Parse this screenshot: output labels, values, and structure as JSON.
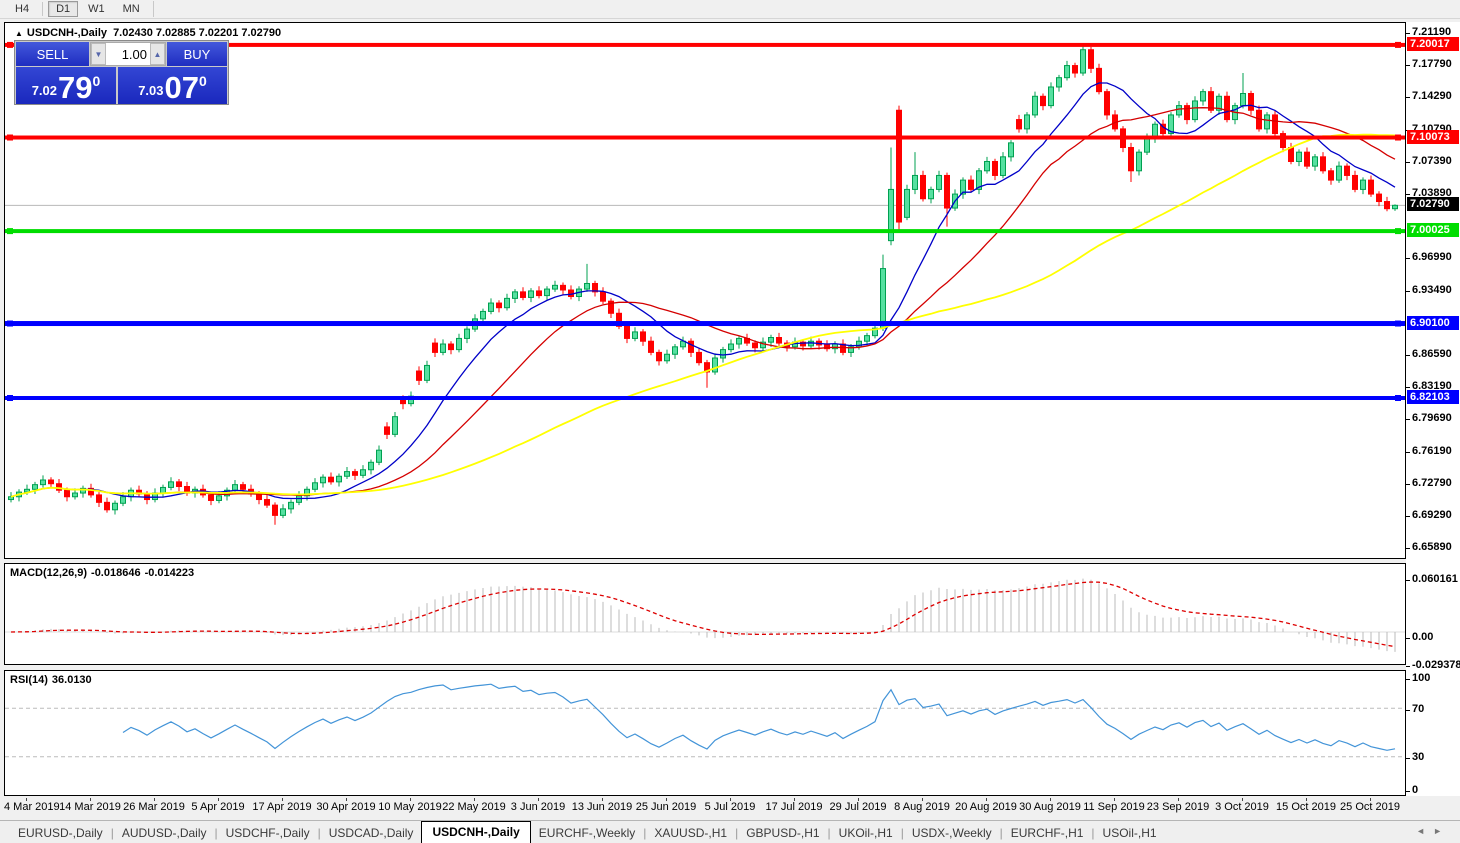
{
  "toolbar": {
    "timeframes": [
      {
        "label": "H4",
        "active": false
      },
      {
        "label": "D1",
        "active": true
      },
      {
        "label": "W1",
        "active": false
      },
      {
        "label": "MN",
        "active": false
      }
    ]
  },
  "chart": {
    "title": {
      "indicator": "▲",
      "symbol": "USDCNH-,Daily",
      "open": "7.02430",
      "high": "7.02885",
      "low": "7.02201",
      "close": "7.02790"
    },
    "trade_panel": {
      "sell_label": "SELL",
      "buy_label": "BUY",
      "volume": "1.00",
      "spinner_down": "▼",
      "spinner_up": "▲",
      "sell_price": {
        "small": "7.02",
        "big": "79",
        "sup": "0"
      },
      "buy_price": {
        "small": "7.03",
        "big": "07",
        "sup": "0"
      }
    },
    "price_axis_ticks": [
      "7.21190",
      "7.17790",
      "7.14290",
      "7.10790",
      "7.07390",
      "7.03890",
      "6.96990",
      "6.93490",
      "6.86590",
      "6.83190",
      "6.79690",
      "6.76190",
      "6.72790",
      "6.69290",
      "6.65890"
    ],
    "current_price": {
      "label": "7.02790",
      "price": 7.0279,
      "badge_bg": "#000000",
      "line_color": "#b8b8b8"
    },
    "hlines": [
      {
        "price": 7.20017,
        "label": "7.20017",
        "color": "#ff0000",
        "thickness": 4
      },
      {
        "price": 7.10073,
        "label": "7.10073",
        "color": "#ff0000",
        "thickness": 4
      },
      {
        "price": 7.00025,
        "label": "7.00025",
        "color": "#00dd00",
        "thickness": 4
      },
      {
        "price": 6.901,
        "label": "6.90100",
        "color": "#0000ff",
        "thickness": 5
      },
      {
        "price": 6.82103,
        "label": "6.82103",
        "color": "#0000ff",
        "thickness": 4
      }
    ]
  },
  "chart_data": {
    "type": "candlestick",
    "symbol": "USDCNH",
    "timeframe": "Daily",
    "y_range": [
      6.6471,
      7.2237
    ],
    "x_labels": [
      "4 Mar 2019",
      "14 Mar 2019",
      "26 Mar 2019",
      "5 Apr 2019",
      "17 Apr 2019",
      "30 Apr 2019",
      "10 May 2019",
      "22 May 2019",
      "3 Jun 2019",
      "13 Jun 2019",
      "25 Jun 2019",
      "5 Jul 2019",
      "17 Jul 2019",
      "29 Jul 2019",
      "8 Aug 2019",
      "20 Aug 2019",
      "30 Aug 2019",
      "11 Sep 2019",
      "23 Sep 2019",
      "3 Oct 2019",
      "15 Oct 2019",
      "25 Oct 2019"
    ],
    "x_label_start_index": 2,
    "x_label_step": 8,
    "colors": {
      "up_fill": "#55e0a0",
      "up_stroke": "#00a050",
      "down_fill": "#ff0000",
      "down_stroke": "#ff0000"
    },
    "overlays": [
      {
        "name": "ma-fast",
        "type": "sma",
        "period": 10,
        "color": "#0000c8",
        "width": 1.3
      },
      {
        "name": "ma-mid",
        "type": "sma",
        "period": 21,
        "color": "#d40000",
        "width": 1.3
      },
      {
        "name": "ma-slow",
        "type": "sma",
        "period": 55,
        "color": "#ffff00",
        "width": 1.8
      }
    ],
    "candles": [
      [
        6.712,
        6.72,
        6.709,
        6.715
      ],
      [
        6.715,
        6.723,
        6.71,
        6.72
      ],
      [
        6.72,
        6.728,
        6.717,
        6.723
      ],
      [
        6.723,
        6.731,
        6.718,
        6.728
      ],
      [
        6.728,
        6.738,
        6.725,
        6.733
      ],
      [
        6.733,
        6.736,
        6.724,
        6.729
      ],
      [
        6.729,
        6.734,
        6.719,
        6.722
      ],
      [
        6.722,
        6.725,
        6.71,
        6.715
      ],
      [
        6.715,
        6.724,
        6.712,
        6.719
      ],
      [
        6.719,
        6.727,
        6.714,
        6.724
      ],
      [
        6.724,
        6.729,
        6.714,
        6.717
      ],
      [
        6.717,
        6.72,
        6.704,
        6.709
      ],
      [
        6.709,
        6.714,
        6.698,
        6.701
      ],
      [
        6.701,
        6.711,
        6.696,
        6.708
      ],
      [
        6.708,
        6.72,
        6.705,
        6.715
      ],
      [
        6.715,
        6.725,
        6.71,
        6.722
      ],
      [
        6.722,
        6.727,
        6.715,
        6.718
      ],
      [
        6.718,
        6.721,
        6.707,
        6.712
      ],
      [
        6.712,
        6.724,
        6.709,
        6.719
      ],
      [
        6.719,
        6.728,
        6.714,
        6.725
      ],
      [
        6.725,
        6.736,
        6.722,
        6.731
      ],
      [
        6.731,
        6.734,
        6.721,
        6.726
      ],
      [
        6.726,
        6.731,
        6.716,
        6.719
      ],
      [
        6.719,
        6.726,
        6.714,
        6.723
      ],
      [
        6.723,
        6.728,
        6.714,
        6.717
      ],
      [
        6.717,
        6.72,
        6.706,
        6.711
      ],
      [
        6.711,
        6.721,
        6.708,
        6.716
      ],
      [
        6.716,
        6.725,
        6.711,
        6.722
      ],
      [
        6.722,
        6.733,
        6.719,
        6.728
      ],
      [
        6.728,
        6.731,
        6.718,
        6.723
      ],
      [
        6.723,
        6.728,
        6.715,
        6.718
      ],
      [
        6.718,
        6.721,
        6.707,
        6.712
      ],
      [
        6.712,
        6.717,
        6.703,
        6.706
      ],
      [
        6.706,
        6.709,
        6.685,
        6.695
      ],
      [
        6.695,
        6.707,
        6.692,
        6.702
      ],
      [
        6.702,
        6.712,
        6.697,
        6.709
      ],
      [
        6.709,
        6.721,
        6.706,
        6.716
      ],
      [
        6.716,
        6.726,
        6.711,
        6.723
      ],
      [
        6.723,
        6.735,
        6.72,
        6.73
      ],
      [
        6.73,
        6.739,
        6.725,
        6.736
      ],
      [
        6.736,
        6.741,
        6.728,
        6.731
      ],
      [
        6.731,
        6.74,
        6.726,
        6.737
      ],
      [
        6.737,
        6.747,
        6.734,
        6.742
      ],
      [
        6.742,
        6.745,
        6.733,
        6.738
      ],
      [
        6.738,
        6.749,
        6.735,
        6.744
      ],
      [
        6.744,
        6.755,
        6.739,
        6.752
      ],
      [
        6.752,
        6.77,
        6.749,
        6.765
      ],
      [
        6.79,
        6.795,
        6.777,
        6.782
      ],
      [
        6.782,
        6.806,
        6.779,
        6.801
      ],
      [
        6.82,
        6.824,
        6.809,
        6.815
      ],
      [
        6.815,
        6.828,
        6.812,
        6.823
      ],
      [
        6.85,
        6.855,
        6.835,
        6.84
      ],
      [
        6.84,
        6.861,
        6.837,
        6.856
      ],
      [
        6.88,
        6.885,
        6.865,
        6.87
      ],
      [
        6.87,
        6.884,
        6.867,
        6.879
      ],
      [
        6.879,
        6.882,
        6.868,
        6.873
      ],
      [
        6.873,
        6.89,
        6.87,
        6.885
      ],
      [
        6.885,
        6.898,
        6.88,
        6.895
      ],
      [
        6.895,
        6.911,
        6.892,
        6.906
      ],
      [
        6.906,
        6.917,
        6.901,
        6.914
      ],
      [
        6.914,
        6.928,
        6.911,
        6.923
      ],
      [
        6.923,
        6.926,
        6.913,
        6.918
      ],
      [
        6.918,
        6.933,
        6.915,
        6.928
      ],
      [
        6.928,
        6.938,
        6.923,
        6.935
      ],
      [
        6.935,
        6.94,
        6.926,
        6.929
      ],
      [
        6.929,
        6.939,
        6.924,
        6.936
      ],
      [
        6.936,
        6.941,
        6.928,
        6.931
      ],
      [
        6.931,
        6.941,
        6.926,
        6.938
      ],
      [
        6.938,
        6.947,
        6.935,
        6.942
      ],
      [
        6.942,
        6.945,
        6.932,
        6.937
      ],
      [
        6.937,
        6.942,
        6.927,
        6.93
      ],
      [
        6.93,
        6.941,
        6.925,
        6.938
      ],
      [
        6.938,
        6.965,
        6.935,
        6.944
      ],
      [
        6.944,
        6.947,
        6.93,
        6.935
      ],
      [
        6.935,
        6.94,
        6.922,
        6.925
      ],
      [
        6.925,
        6.928,
        6.907,
        6.912
      ],
      [
        6.912,
        6.917,
        6.895,
        6.898
      ],
      [
        6.898,
        6.901,
        6.88,
        6.885
      ],
      [
        6.885,
        6.897,
        6.882,
        6.892
      ],
      [
        6.892,
        6.895,
        6.877,
        6.882
      ],
      [
        6.882,
        6.887,
        6.867,
        6.87
      ],
      [
        6.87,
        6.873,
        6.856,
        6.861
      ],
      [
        6.861,
        6.873,
        6.858,
        6.868
      ],
      [
        6.868,
        6.879,
        6.863,
        6.876
      ],
      [
        6.876,
        6.887,
        6.873,
        6.882
      ],
      [
        6.882,
        6.885,
        6.865,
        6.87
      ],
      [
        6.87,
        6.875,
        6.856,
        6.859
      ],
      [
        6.859,
        6.862,
        6.832,
        6.849
      ],
      [
        6.849,
        6.869,
        6.846,
        6.864
      ],
      [
        6.864,
        6.876,
        6.859,
        6.873
      ],
      [
        6.873,
        6.884,
        6.87,
        6.879
      ],
      [
        6.879,
        6.888,
        6.874,
        6.885
      ],
      [
        6.885,
        6.89,
        6.877,
        6.88
      ],
      [
        6.88,
        6.883,
        6.87,
        6.875
      ],
      [
        6.875,
        6.886,
        6.872,
        6.881
      ],
      [
        6.881,
        6.889,
        6.876,
        6.886
      ],
      [
        6.886,
        6.891,
        6.877,
        6.88
      ],
      [
        6.88,
        6.883,
        6.871,
        6.876
      ],
      [
        6.876,
        6.886,
        6.873,
        6.881
      ],
      [
        6.881,
        6.884,
        6.872,
        6.877
      ],
      [
        6.877,
        6.887,
        6.874,
        6.882
      ],
      [
        6.882,
        6.885,
        6.873,
        6.878
      ],
      [
        6.878,
        6.883,
        6.871,
        6.874
      ],
      [
        6.874,
        6.882,
        6.869,
        6.879
      ],
      [
        6.879,
        6.884,
        6.867,
        6.87
      ],
      [
        6.87,
        6.879,
        6.865,
        6.876
      ],
      [
        6.876,
        6.887,
        6.873,
        6.882
      ],
      [
        6.882,
        6.891,
        6.877,
        6.888
      ],
      [
        6.888,
        6.901,
        6.885,
        6.896
      ],
      [
        6.896,
        6.975,
        6.893,
        6.96
      ],
      [
        6.99,
        7.09,
        6.985,
        7.045
      ],
      [
        7.13,
        7.135,
        7.0,
        7.01
      ],
      [
        7.015,
        7.05,
        7.012,
        7.045
      ],
      [
        7.045,
        7.085,
        7.04,
        7.06
      ],
      [
        7.06,
        7.065,
        7.032,
        7.035
      ],
      [
        7.035,
        7.048,
        7.03,
        7.045
      ],
      [
        7.045,
        7.065,
        7.042,
        7.06
      ],
      [
        7.06,
        7.063,
        7.005,
        7.025
      ],
      [
        7.025,
        7.045,
        7.022,
        7.04
      ],
      [
        7.04,
        7.058,
        7.035,
        7.055
      ],
      [
        7.055,
        7.06,
        7.042,
        7.045
      ],
      [
        7.045,
        7.068,
        7.04,
        7.065
      ],
      [
        7.065,
        7.08,
        7.062,
        7.075
      ],
      [
        7.075,
        7.078,
        7.055,
        7.06
      ],
      [
        7.06,
        7.085,
        7.057,
        7.08
      ],
      [
        7.08,
        7.098,
        7.075,
        7.095
      ],
      [
        7.12,
        7.125,
        7.106,
        7.11
      ],
      [
        7.11,
        7.128,
        7.105,
        7.125
      ],
      [
        7.125,
        7.15,
        7.122,
        7.145
      ],
      [
        7.145,
        7.148,
        7.13,
        7.135
      ],
      [
        7.135,
        7.16,
        7.132,
        7.155
      ],
      [
        7.155,
        7.168,
        7.15,
        7.165
      ],
      [
        7.165,
        7.183,
        7.162,
        7.178
      ],
      [
        7.178,
        7.181,
        7.165,
        7.17
      ],
      [
        7.17,
        7.199,
        7.167,
        7.195
      ],
      [
        7.195,
        7.198,
        7.17,
        7.175
      ],
      [
        7.175,
        7.18,
        7.147,
        7.15
      ],
      [
        7.15,
        7.153,
        7.12,
        7.125
      ],
      [
        7.125,
        7.13,
        7.107,
        7.11
      ],
      [
        7.11,
        7.113,
        7.085,
        7.09
      ],
      [
        7.09,
        7.095,
        7.053,
        7.065
      ],
      [
        7.065,
        7.088,
        7.06,
        7.085
      ],
      [
        7.085,
        7.105,
        7.082,
        7.1
      ],
      [
        7.1,
        7.118,
        7.095,
        7.115
      ],
      [
        7.115,
        7.12,
        7.102,
        7.105
      ],
      [
        7.105,
        7.128,
        7.1,
        7.125
      ],
      [
        7.125,
        7.14,
        7.122,
        7.135
      ],
      [
        7.135,
        7.138,
        7.115,
        7.12
      ],
      [
        7.12,
        7.145,
        7.117,
        7.14
      ],
      [
        7.14,
        7.153,
        7.135,
        7.15
      ],
      [
        7.15,
        7.155,
        7.127,
        7.13
      ],
      [
        7.13,
        7.148,
        7.125,
        7.145
      ],
      [
        7.145,
        7.15,
        7.117,
        7.12
      ],
      [
        7.12,
        7.138,
        7.115,
        7.135
      ],
      [
        7.135,
        7.17,
        7.132,
        7.148
      ],
      [
        7.148,
        7.151,
        7.125,
        7.13
      ],
      [
        7.13,
        7.135,
        7.107,
        7.11
      ],
      [
        7.11,
        7.128,
        7.105,
        7.125
      ],
      [
        7.125,
        7.13,
        7.102,
        7.105
      ],
      [
        7.105,
        7.108,
        7.085,
        7.09
      ],
      [
        7.09,
        7.095,
        7.072,
        7.075
      ],
      [
        7.075,
        7.088,
        7.07,
        7.085
      ],
      [
        7.085,
        7.09,
        7.067,
        7.07
      ],
      [
        7.07,
        7.083,
        7.065,
        7.08
      ],
      [
        7.08,
        7.085,
        7.062,
        7.065
      ],
      [
        7.065,
        7.068,
        7.05,
        7.055
      ],
      [
        7.055,
        7.075,
        7.052,
        7.07
      ],
      [
        7.07,
        7.073,
        7.055,
        7.06
      ],
      [
        7.06,
        7.065,
        7.042,
        7.045
      ],
      [
        7.045,
        7.058,
        7.04,
        7.055
      ],
      [
        7.055,
        7.06,
        7.037,
        7.04
      ],
      [
        7.04,
        7.043,
        7.027,
        7.032
      ],
      [
        7.032,
        7.037,
        7.0215,
        7.0243
      ],
      [
        7.0243,
        7.0289,
        7.022,
        7.0279
      ]
    ]
  },
  "macd_panel": {
    "label": "MACD(12,26,9)",
    "main_value": "-0.018646",
    "signal_value": "-0.014223",
    "axis": [
      "0.060161",
      "0.00",
      "-0.029378"
    ],
    "params": {
      "fast": 12,
      "slow": 26,
      "signal": 9
    },
    "colors": {
      "histogram": "#bbbbbb",
      "signal": "#dd0000",
      "zero_line": "#dcdcdc"
    }
  },
  "rsi_panel": {
    "label": "RSI(14)",
    "value": "36.0130",
    "axis": [
      "100",
      "70",
      "30",
      "0"
    ],
    "levels": [
      70,
      30
    ],
    "period": 14,
    "colors": {
      "line": "#4394d8",
      "level": "#bbbbbb"
    }
  },
  "tabs": {
    "items": [
      {
        "label": "EURUSD-,Daily",
        "active": false
      },
      {
        "label": "AUDUSD-,Daily",
        "active": false
      },
      {
        "label": "USDCHF-,Daily",
        "active": false
      },
      {
        "label": "USDCAD-,Daily",
        "active": false
      },
      {
        "label": "USDCNH-,Daily",
        "active": true
      },
      {
        "label": "EURCHF-,Weekly",
        "active": false
      },
      {
        "label": "XAUUSD-,H1",
        "active": false
      },
      {
        "label": "GBPUSD-,H1",
        "active": false
      },
      {
        "label": "UKOil-,H1",
        "active": false
      },
      {
        "label": "USDX-,Weekly",
        "active": false
      },
      {
        "label": "EURCHF-,H1",
        "active": false
      },
      {
        "label": "USOil-,H1",
        "active": false
      }
    ],
    "scroll_left": "◄",
    "scroll_right": "►"
  }
}
